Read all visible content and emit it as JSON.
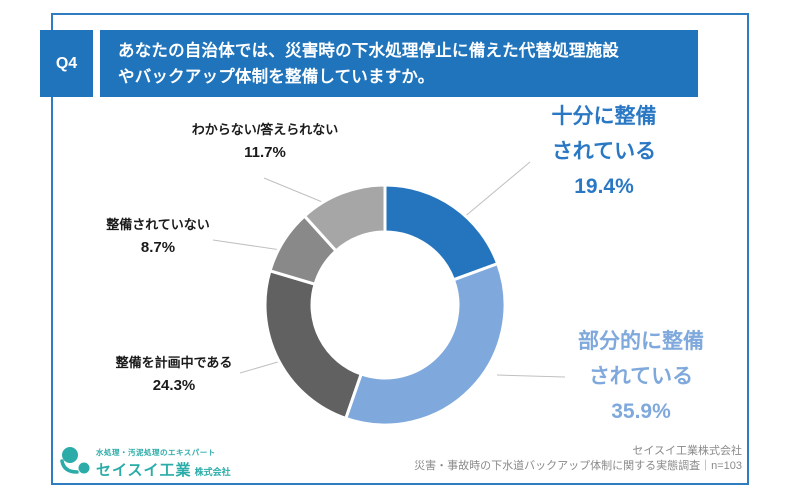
{
  "question": {
    "number": "Q4",
    "text": "あなたの自治体では、災害時の下水処理停止に備えた代替処理施設\nやバックアップ体制を整備していますか。"
  },
  "chart_data": {
    "type": "pie",
    "donut": true,
    "start_angle_deg": 0,
    "direction": "clockwise",
    "unit": "%",
    "n_label": "n=103",
    "slices": [
      {
        "label": "十分に整備されている",
        "label_lines": [
          "十分に整備",
          "されている"
        ],
        "value": 19.4,
        "pct_label": "19.4%",
        "color": "#2575BE",
        "label_color": "#2A78C4"
      },
      {
        "label": "部分的に整備されている",
        "label_lines": [
          "部分的に整備",
          "されている"
        ],
        "value": 35.9,
        "pct_label": "35.9%",
        "color": "#7FA9DC",
        "label_color": "#7FA9DC"
      },
      {
        "label": "整備を計画中である",
        "value": 24.3,
        "pct_label": "24.3%",
        "color": "#616161",
        "label_color": "#1A1A1A"
      },
      {
        "label": "整備されていない",
        "value": 8.7,
        "pct_label": "8.7%",
        "color": "#898989",
        "label_color": "#1A1A1A"
      },
      {
        "label": "わからない/答えられない",
        "value": 11.7,
        "pct_label": "11.7%",
        "color": "#A6A6A6",
        "label_color": "#1A1A1A"
      }
    ]
  },
  "footer": {
    "logo": {
      "tagline": "水処理・汚泥処理のエキスパート",
      "company": "セイスイ工業",
      "suffix": "株式会社"
    },
    "source_line1": "セイスイ工業株式会社",
    "source_line2": "災害・事故時の下水道バックアップ体制に関する実態調査｜n=103"
  },
  "colors": {
    "header_blue": "#1F74BC",
    "frame_border": "#2F7CC0",
    "leader_line": "#C0C0C0",
    "logo_teal": "#2BACA9",
    "footer_text": "#8A8A8A"
  }
}
